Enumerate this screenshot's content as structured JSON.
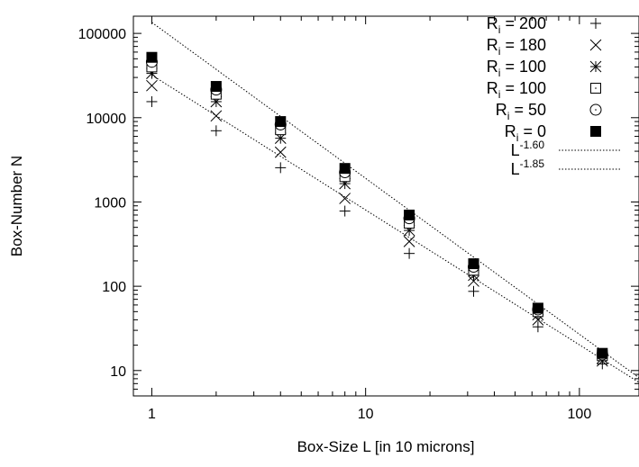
{
  "chart_data": {
    "type": "scatter",
    "xlabel": "Box-Size L [in 10 microns]",
    "ylabel": "Box-Number N",
    "xscale": "log",
    "yscale": "log",
    "xlim": [
      0.82,
      190
    ],
    "ylim": [
      5,
      160000
    ],
    "xticks": [
      1,
      10,
      100
    ],
    "xtick_labels": [
      "1",
      "10",
      "100"
    ],
    "yticks": [
      10,
      100,
      1000,
      10000,
      100000
    ],
    "ytick_labels": [
      "10",
      "100",
      "1000",
      "10000",
      "100000"
    ],
    "grid": false,
    "legend_position": "top-right",
    "x": [
      1,
      2,
      4,
      8,
      16,
      32,
      64,
      128
    ],
    "series": [
      {
        "name_main": "R",
        "name_sub": "i",
        "name_rest": " = 200",
        "marker": "plus",
        "values": [
          15500,
          7000,
          2550,
          780,
          245,
          87,
          33,
          12
        ]
      },
      {
        "name_main": "R",
        "name_sub": "i",
        "name_rest": " = 180",
        "marker": "cross",
        "values": [
          24000,
          10500,
          3900,
          1100,
          340,
          115,
          40,
          13
        ]
      },
      {
        "name_main": "R",
        "name_sub": "i",
        "name_rest": " = 100",
        "marker": "asterisk",
        "values": [
          33500,
          15500,
          5700,
          1650,
          460,
          135,
          46,
          14
        ]
      },
      {
        "name_main": "R",
        "name_sub": "i",
        "name_rest": " = 100",
        "marker": "square-open",
        "values": [
          40000,
          19000,
          7200,
          2000,
          560,
          155,
          50,
          15
        ]
      },
      {
        "name_main": "R",
        "name_sub": "i",
        "name_rest": " = 50",
        "marker": "circle-open",
        "values": [
          46000,
          21500,
          8300,
          2250,
          640,
          170,
          53,
          15.5
        ]
      },
      {
        "name_main": "R",
        "name_sub": "i",
        "name_rest": " = 0",
        "marker": "square-filled",
        "values": [
          52000,
          23500,
          9000,
          2500,
          700,
          185,
          55,
          16
        ]
      }
    ],
    "fit_lines": [
      {
        "name_main": "L",
        "name_sup": "-1.60",
        "exponent": -1.6,
        "amplitude": 32000
      },
      {
        "name_main": "L",
        "name_sup": "-1.85",
        "exponent": -1.85,
        "amplitude": 135000
      }
    ]
  }
}
